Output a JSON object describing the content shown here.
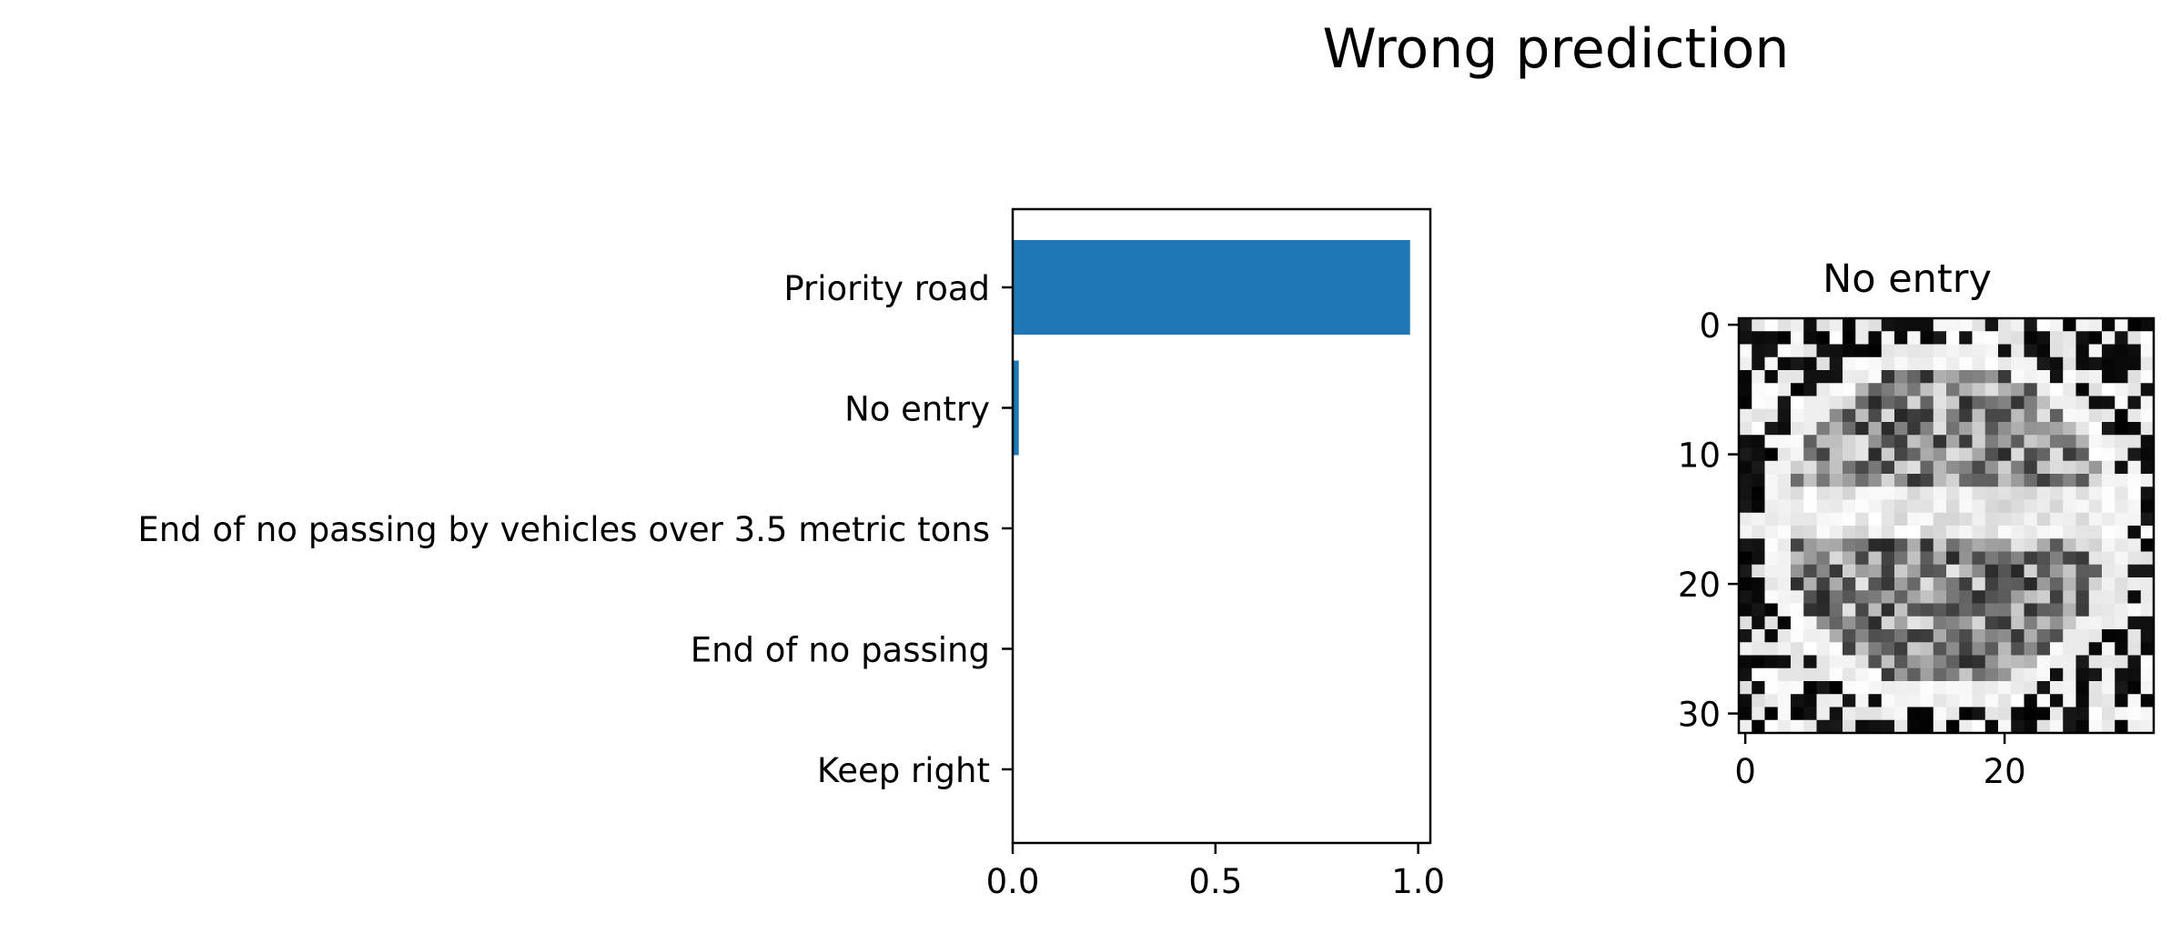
{
  "figure": {
    "suptitle": "Wrong prediction"
  },
  "chart_data": [
    {
      "type": "bar",
      "orientation": "horizontal",
      "categories": [
        "Priority road",
        "No entry",
        "End of no passing by vehicles over 3.5 metric tons",
        "End of no passing",
        "Keep right"
      ],
      "values": [
        0.98,
        0.015,
        0.0,
        0.0,
        0.0
      ],
      "xlim": [
        0,
        1.03
      ],
      "xticks": [
        "0.0",
        "0.5",
        "1.0"
      ],
      "xtick_values": [
        0,
        0.5,
        1.0
      ],
      "grid": false,
      "bar_color": "#1f77b4"
    },
    {
      "type": "heatmap",
      "title": "No entry",
      "colormap": "gray",
      "shape": [
        32,
        32
      ],
      "xticks": [
        "0",
        "20"
      ],
      "xtick_values": [
        0,
        20
      ],
      "yticks": [
        "0",
        "10",
        "20",
        "30"
      ],
      "ytick_values": [
        0,
        10,
        20,
        30
      ]
    }
  ]
}
